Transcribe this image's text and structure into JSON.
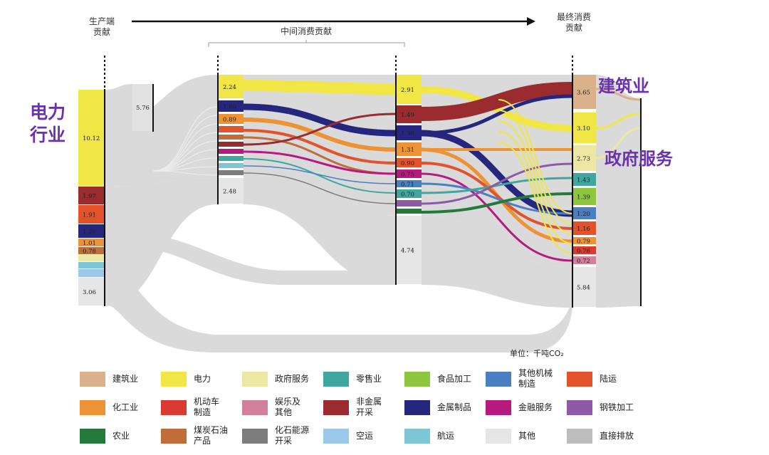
{
  "header": {
    "producer": "生产端\n贡献",
    "intermediate": "中间消费贡献",
    "final": "最终消费\n贡献"
  },
  "callouts": {
    "power": "电力\n行业",
    "construction": "建筑业",
    "government": "政府服务"
  },
  "unit": "单位：千吨CO₂",
  "colors": {
    "建筑业": "#d9b18a",
    "电力": "#f0e646",
    "政府服务": "#ece7a2",
    "零售业": "#3fa7a0",
    "食品加工": "#8ec63f",
    "其他机械制造": "#4a7fc3",
    "陆运": "#e2522b",
    "化工业": "#ee9236",
    "机动车制造": "#d93a31",
    "娱乐及其他": "#d27f9c",
    "非金属开采": "#9a2b2e",
    "金属制品": "#25267d",
    "金融服务": "#b71a7f",
    "钢铁加工": "#8e5aa8",
    "农业": "#237a3a",
    "煤炭石油产品": "#c06d3a",
    "化石能源开采": "#7d7d7d",
    "空运": "#9cc9ea",
    "航运": "#7cc6d6",
    "其他": "#e6e6e6",
    "直接排放": "#bdbdbd"
  },
  "legend": [
    {
      "label": "建筑业",
      "color": "#d9b18a"
    },
    {
      "label": "电力",
      "color": "#f0e646"
    },
    {
      "label": "政府服务",
      "color": "#ece7a2"
    },
    {
      "label": "零售业",
      "color": "#3fa7a0"
    },
    {
      "label": "食品加工",
      "color": "#8ec63f"
    },
    {
      "label": "其他机械\n制造",
      "color": "#4a7fc3"
    },
    {
      "label": "陆运",
      "color": "#e2522b"
    },
    {
      "label": "化工业",
      "color": "#ee9236"
    },
    {
      "label": "机动车\n制造",
      "color": "#d93a31"
    },
    {
      "label": "娱乐及\n其他",
      "color": "#d27f9c"
    },
    {
      "label": "非金属\n开采",
      "color": "#9a2b2e"
    },
    {
      "label": "金属制品",
      "color": "#25267d"
    },
    {
      "label": "金融服务",
      "color": "#b71a7f"
    },
    {
      "label": "钢铁加工",
      "color": "#8e5aa8"
    },
    {
      "label": "农业",
      "color": "#237a3a"
    },
    {
      "label": "煤炭石油\n产品",
      "color": "#c06d3a"
    },
    {
      "label": "化石能源\n开采",
      "color": "#7d7d7d"
    },
    {
      "label": "空运",
      "color": "#9cc9ea"
    },
    {
      "label": "航运",
      "color": "#7cc6d6"
    },
    {
      "label": "其他",
      "color": "#e6e6e6"
    },
    {
      "label": "直接排放",
      "color": "#bdbdbd"
    }
  ],
  "nodes": {
    "producer": [
      {
        "sector": "电力",
        "value": "10.12"
      },
      {
        "sector": "非金属开采",
        "value": "1.97"
      },
      {
        "sector": "陆运",
        "value": "1.91"
      },
      {
        "sector": "金属制品",
        "value": "1.26"
      },
      {
        "sector": "化工业",
        "value": "1.01"
      },
      {
        "sector": "煤炭石油产品",
        "value": "0.78"
      },
      {
        "sector": "政府服务",
        "value": ""
      },
      {
        "sector": "航运",
        "value": ""
      },
      {
        "sector": "空运",
        "value": ""
      },
      {
        "sector": "其他",
        "value": "3.06"
      }
    ],
    "direct": {
      "sector": "直接排放",
      "value": "5.76"
    },
    "intermediate1": [
      {
        "sector": "电力",
        "value": "2.24"
      },
      {
        "sector": "金属制品",
        "value": "1.60"
      },
      {
        "sector": "化工业",
        "value": "0.89"
      },
      {
        "sector": "陆运",
        "value": ""
      },
      {
        "sector": "煤炭石油产品",
        "value": ""
      },
      {
        "sector": "非金属开采",
        "value": ""
      },
      {
        "sector": "金融服务",
        "value": ""
      },
      {
        "sector": "零售业",
        "value": ""
      },
      {
        "sector": "航运",
        "value": ""
      },
      {
        "sector": "化石能源开采",
        "value": ""
      },
      {
        "sector": "其他",
        "value": "2.48"
      }
    ],
    "intermediate2": [
      {
        "sector": "电力",
        "value": "2.91"
      },
      {
        "sector": "非金属开采",
        "value": "1.49"
      },
      {
        "sector": "金属制品",
        "value": "1.36"
      },
      {
        "sector": "化工业",
        "value": "1.31"
      },
      {
        "sector": "陆运",
        "value": "0.90"
      },
      {
        "sector": "金融服务",
        "value": "0.75"
      },
      {
        "sector": "其他机械制造",
        "value": "0.71"
      },
      {
        "sector": "零售业",
        "value": "0.70"
      },
      {
        "sector": "钢铁加工",
        "value": ""
      },
      {
        "sector": "农业",
        "value": ""
      },
      {
        "sector": "其他",
        "value": "4.74"
      }
    ],
    "final": [
      {
        "sector": "建筑业",
        "value": "3.65"
      },
      {
        "sector": "电力",
        "value": "3.10"
      },
      {
        "sector": "政府服务",
        "value": "2.73"
      },
      {
        "sector": "零售业",
        "value": "1.43"
      },
      {
        "sector": "食品加工",
        "value": "1.39"
      },
      {
        "sector": "其他机械制造",
        "value": "1.20"
      },
      {
        "sector": "陆运",
        "value": "1.16"
      },
      {
        "sector": "化工业",
        "value": "0.79"
      },
      {
        "sector": "机动车制造",
        "value": "0.76"
      },
      {
        "sector": "娱乐及其他",
        "value": "0.72"
      },
      {
        "sector": "其他",
        "value": "5.84"
      }
    ]
  }
}
